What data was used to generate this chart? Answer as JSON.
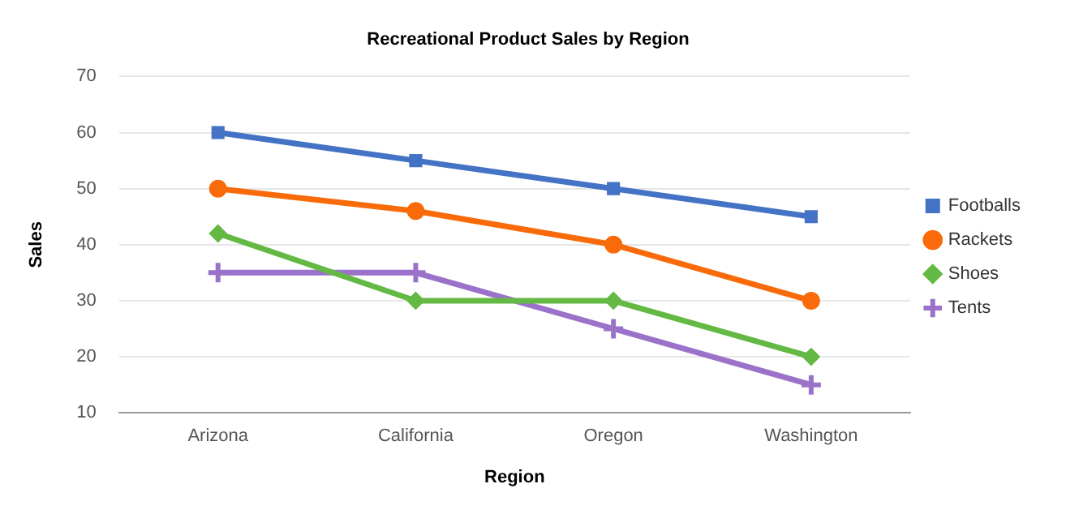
{
  "chart_data": {
    "type": "line",
    "title": "Recreational Product Sales by Region",
    "xlabel": "Region",
    "ylabel": "Sales",
    "categories": [
      "Arizona",
      "California",
      "Oregon",
      "Washington"
    ],
    "series": [
      {
        "name": "Footballs",
        "color": "#4472c4",
        "marker": "square",
        "values": [
          60,
          55,
          50,
          45
        ]
      },
      {
        "name": "Rackets",
        "color": "#f96b0a",
        "marker": "circle",
        "values": [
          50,
          46,
          40,
          30
        ]
      },
      {
        "name": "Shoes",
        "color": "#64b945",
        "marker": "diamond",
        "values": [
          42,
          30,
          30,
          20
        ]
      },
      {
        "name": "Tents",
        "color": "#9b72c9",
        "marker": "cross",
        "values": [
          35,
          35,
          25,
          15
        ]
      }
    ],
    "ylim": [
      10,
      70
    ],
    "yticks": [
      10,
      20,
      30,
      40,
      50,
      60,
      70
    ],
    "grid": "y",
    "legend": "right",
    "line_style": "solid"
  }
}
